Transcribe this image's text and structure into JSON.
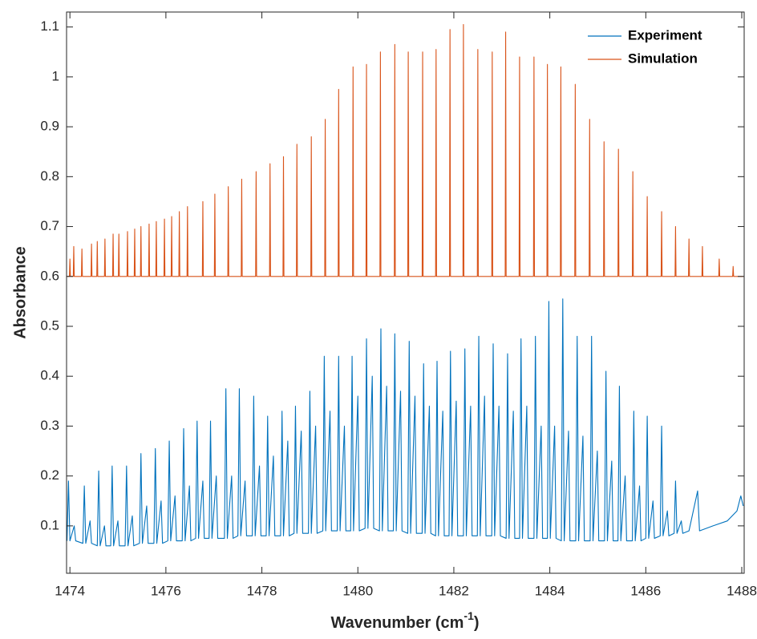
{
  "chart_data": {
    "type": "line",
    "xlabel": {
      "text": "Wavenumber (cm",
      "sup": "-1",
      "after": ")"
    },
    "ylabel": "Absorbance",
    "xlim": [
      1473.93,
      1488.05
    ],
    "xticks": [
      1474,
      1476,
      1478,
      1480,
      1482,
      1484,
      1486,
      1488
    ],
    "ylim": [
      0.005,
      1.13
    ],
    "yticks": [
      0.1,
      0.2,
      0.3,
      0.4,
      0.5,
      0.6,
      0.7,
      0.8,
      0.9,
      1,
      1.1
    ],
    "grid": false,
    "legend": "top-right",
    "series": [
      {
        "name": "Experiment",
        "color": "#0072bd",
        "x": [
          1473.94,
          1473.97,
          1474.0,
          1474.09,
          1474.12,
          1474.27,
          1474.3,
          1474.33,
          1474.42,
          1474.45,
          1474.57,
          1474.6,
          1474.63,
          1474.72,
          1474.75,
          1474.85,
          1474.88,
          1474.91,
          1475.0,
          1475.03,
          1475.15,
          1475.18,
          1475.21,
          1475.3,
          1475.33,
          1475.45,
          1475.48,
          1475.51,
          1475.6,
          1475.63,
          1475.75,
          1475.78,
          1475.81,
          1475.9,
          1475.93,
          1476.04,
          1476.07,
          1476.1,
          1476.19,
          1476.22,
          1476.34,
          1476.37,
          1476.4,
          1476.49,
          1476.52,
          1476.62,
          1476.65,
          1476.68,
          1476.77,
          1476.8,
          1476.9,
          1476.93,
          1476.96,
          1477.05,
          1477.08,
          1477.22,
          1477.25,
          1477.28,
          1477.37,
          1477.4,
          1477.5,
          1477.53,
          1477.56,
          1477.65,
          1477.68,
          1477.8,
          1477.83,
          1477.86,
          1477.95,
          1477.98,
          1478.09,
          1478.12,
          1478.15,
          1478.24,
          1478.27,
          1478.39,
          1478.42,
          1478.45,
          1478.54,
          1478.57,
          1478.67,
          1478.7,
          1478.73,
          1478.82,
          1478.85,
          1478.97,
          1479.0,
          1479.03,
          1479.12,
          1479.15,
          1479.27,
          1479.3,
          1479.33,
          1479.42,
          1479.45,
          1479.57,
          1479.6,
          1479.63,
          1479.72,
          1479.75,
          1479.85,
          1479.88,
          1479.91,
          1480.0,
          1480.03,
          1480.15,
          1480.18,
          1480.21,
          1480.3,
          1480.33,
          1480.45,
          1480.48,
          1480.51,
          1480.6,
          1480.63,
          1480.74,
          1480.77,
          1480.8,
          1480.89,
          1480.92,
          1481.04,
          1481.07,
          1481.1,
          1481.19,
          1481.22,
          1481.34,
          1481.37,
          1481.4,
          1481.49,
          1481.52,
          1481.62,
          1481.65,
          1481.68,
          1481.77,
          1481.8,
          1481.9,
          1481.93,
          1481.96,
          1482.05,
          1482.08,
          1482.2,
          1482.23,
          1482.26,
          1482.35,
          1482.38,
          1482.49,
          1482.52,
          1482.55,
          1482.64,
          1482.67,
          1482.79,
          1482.82,
          1482.85,
          1482.94,
          1482.97,
          1483.09,
          1483.12,
          1483.15,
          1483.24,
          1483.27,
          1483.37,
          1483.4,
          1483.43,
          1483.52,
          1483.55,
          1483.67,
          1483.7,
          1483.73,
          1483.82,
          1483.85,
          1483.95,
          1483.98,
          1484.01,
          1484.1,
          1484.13,
          1484.24,
          1484.27,
          1484.3,
          1484.39,
          1484.42,
          1484.54,
          1484.57,
          1484.6,
          1484.69,
          1484.72,
          1484.84,
          1484.87,
          1484.9,
          1484.99,
          1485.02,
          1485.14,
          1485.17,
          1485.2,
          1485.29,
          1485.32,
          1485.42,
          1485.45,
          1485.48,
          1485.57,
          1485.6,
          1485.72,
          1485.75,
          1485.78,
          1485.87,
          1485.9,
          1486.0,
          1486.03,
          1486.06,
          1486.15,
          1486.18,
          1486.3,
          1486.33,
          1486.36,
          1486.45,
          1486.48,
          1486.59,
          1486.62,
          1486.65,
          1486.74,
          1486.77,
          1486.9,
          1487.08,
          1487.12,
          1487.4,
          1487.7,
          1487.9,
          1487.98,
          1488.03
        ],
        "values": [
          0.07,
          0.19,
          0.07,
          0.1,
          0.07,
          0.065,
          0.18,
          0.065,
          0.11,
          0.065,
          0.06,
          0.21,
          0.06,
          0.1,
          0.06,
          0.06,
          0.22,
          0.06,
          0.11,
          0.06,
          0.06,
          0.22,
          0.06,
          0.12,
          0.06,
          0.065,
          0.245,
          0.065,
          0.14,
          0.065,
          0.065,
          0.255,
          0.065,
          0.15,
          0.065,
          0.07,
          0.27,
          0.07,
          0.16,
          0.07,
          0.07,
          0.295,
          0.07,
          0.18,
          0.07,
          0.075,
          0.31,
          0.075,
          0.19,
          0.075,
          0.075,
          0.31,
          0.075,
          0.2,
          0.075,
          0.075,
          0.375,
          0.075,
          0.2,
          0.075,
          0.08,
          0.375,
          0.08,
          0.19,
          0.08,
          0.08,
          0.36,
          0.08,
          0.22,
          0.08,
          0.08,
          0.32,
          0.08,
          0.24,
          0.08,
          0.08,
          0.33,
          0.08,
          0.27,
          0.08,
          0.085,
          0.34,
          0.085,
          0.29,
          0.085,
          0.085,
          0.37,
          0.085,
          0.3,
          0.085,
          0.09,
          0.44,
          0.09,
          0.33,
          0.09,
          0.09,
          0.44,
          0.09,
          0.3,
          0.09,
          0.09,
          0.44,
          0.09,
          0.36,
          0.09,
          0.095,
          0.475,
          0.095,
          0.4,
          0.095,
          0.09,
          0.495,
          0.09,
          0.38,
          0.09,
          0.09,
          0.485,
          0.09,
          0.37,
          0.09,
          0.085,
          0.47,
          0.085,
          0.36,
          0.085,
          0.085,
          0.425,
          0.085,
          0.34,
          0.085,
          0.08,
          0.43,
          0.08,
          0.33,
          0.08,
          0.08,
          0.45,
          0.08,
          0.35,
          0.08,
          0.08,
          0.455,
          0.08,
          0.34,
          0.08,
          0.08,
          0.48,
          0.08,
          0.36,
          0.08,
          0.08,
          0.465,
          0.08,
          0.34,
          0.08,
          0.075,
          0.445,
          0.075,
          0.33,
          0.075,
          0.075,
          0.475,
          0.075,
          0.34,
          0.075,
          0.075,
          0.48,
          0.075,
          0.3,
          0.075,
          0.075,
          0.55,
          0.075,
          0.3,
          0.075,
          0.07,
          0.555,
          0.07,
          0.29,
          0.07,
          0.07,
          0.48,
          0.07,
          0.28,
          0.07,
          0.07,
          0.48,
          0.07,
          0.25,
          0.07,
          0.07,
          0.41,
          0.07,
          0.23,
          0.07,
          0.07,
          0.38,
          0.07,
          0.2,
          0.07,
          0.07,
          0.33,
          0.07,
          0.18,
          0.07,
          0.075,
          0.32,
          0.075,
          0.15,
          0.075,
          0.08,
          0.3,
          0.08,
          0.13,
          0.08,
          0.085,
          0.19,
          0.085,
          0.11,
          0.085,
          0.09,
          0.17,
          0.09,
          0.1,
          0.11,
          0.13,
          0.16,
          0.14
        ]
      },
      {
        "name": "Simulation",
        "color": "#d95319",
        "x": [
          1473.94,
          1473.99,
          1474.0,
          1474.01,
          1474.07,
          1474.08,
          1474.09,
          1474.24,
          1474.25,
          1474.26,
          1474.44,
          1474.45,
          1474.46,
          1474.56,
          1474.57,
          1474.58,
          1474.72,
          1474.73,
          1474.74,
          1474.89,
          1474.9,
          1474.91,
          1475.01,
          1475.02,
          1475.03,
          1475.19,
          1475.2,
          1475.21,
          1475.34,
          1475.35,
          1475.36,
          1475.47,
          1475.48,
          1475.49,
          1475.64,
          1475.65,
          1475.66,
          1475.79,
          1475.8,
          1475.81,
          1475.96,
          1475.97,
          1475.98,
          1476.11,
          1476.12,
          1476.13,
          1476.27,
          1476.28,
          1476.29,
          1476.44,
          1476.45,
          1476.46,
          1476.76,
          1476.77,
          1476.78,
          1477.01,
          1477.02,
          1477.03,
          1477.29,
          1477.3,
          1477.31,
          1477.57,
          1477.58,
          1477.59,
          1477.87,
          1477.88,
          1477.89,
          1478.16,
          1478.17,
          1478.18,
          1478.44,
          1478.45,
          1478.46,
          1478.72,
          1478.73,
          1478.74,
          1479.02,
          1479.03,
          1479.04,
          1479.31,
          1479.32,
          1479.33,
          1479.59,
          1479.6,
          1479.61,
          1479.89,
          1479.9,
          1479.91,
          1480.17,
          1480.18,
          1480.19,
          1480.46,
          1480.47,
          1480.48,
          1480.76,
          1480.77,
          1480.78,
          1481.04,
          1481.05,
          1481.06,
          1481.34,
          1481.35,
          1481.36,
          1481.62,
          1481.63,
          1481.64,
          1481.91,
          1481.92,
          1481.93,
          1482.19,
          1482.2,
          1482.21,
          1482.49,
          1482.5,
          1482.51,
          1482.79,
          1482.8,
          1482.81,
          1483.07,
          1483.08,
          1483.09,
          1483.36,
          1483.37,
          1483.38,
          1483.66,
          1483.67,
          1483.68,
          1483.94,
          1483.95,
          1483.96,
          1484.22,
          1484.23,
          1484.24,
          1484.52,
          1484.53,
          1484.54,
          1484.82,
          1484.83,
          1484.84,
          1485.12,
          1485.13,
          1485.14,
          1485.42,
          1485.43,
          1485.44,
          1485.72,
          1485.73,
          1485.74,
          1486.02,
          1486.03,
          1486.04,
          1486.32,
          1486.33,
          1486.34,
          1486.61,
          1486.62,
          1486.63,
          1486.89,
          1486.9,
          1486.91,
          1487.17,
          1487.18,
          1487.19,
          1487.52,
          1487.53,
          1487.54,
          1487.81,
          1487.82,
          1487.83,
          1488.03
        ],
        "values": [
          0.6,
          0.6,
          0.635,
          0.6,
          0.6,
          0.66,
          0.6,
          0.6,
          0.655,
          0.6,
          0.6,
          0.665,
          0.6,
          0.6,
          0.67,
          0.6,
          0.6,
          0.675,
          0.6,
          0.6,
          0.685,
          0.6,
          0.6,
          0.685,
          0.6,
          0.6,
          0.69,
          0.6,
          0.6,
          0.695,
          0.6,
          0.6,
          0.7,
          0.6,
          0.6,
          0.705,
          0.6,
          0.6,
          0.71,
          0.6,
          0.6,
          0.715,
          0.6,
          0.6,
          0.72,
          0.6,
          0.6,
          0.73,
          0.6,
          0.6,
          0.74,
          0.6,
          0.6,
          0.75,
          0.6,
          0.6,
          0.765,
          0.6,
          0.6,
          0.78,
          0.6,
          0.6,
          0.795,
          0.6,
          0.6,
          0.81,
          0.6,
          0.6,
          0.826,
          0.6,
          0.6,
          0.84,
          0.6,
          0.6,
          0.865,
          0.6,
          0.6,
          0.88,
          0.6,
          0.6,
          0.915,
          0.6,
          0.6,
          0.975,
          0.6,
          0.6,
          1.02,
          0.6,
          0.6,
          1.025,
          0.6,
          0.6,
          1.05,
          0.6,
          0.6,
          1.065,
          0.6,
          0.6,
          1.05,
          0.6,
          0.6,
          1.05,
          0.6,
          0.6,
          1.055,
          0.6,
          0.6,
          1.095,
          0.6,
          0.6,
          1.105,
          0.6,
          0.6,
          1.055,
          0.6,
          0.6,
          1.05,
          0.6,
          0.6,
          1.09,
          0.6,
          0.6,
          1.04,
          0.6,
          0.6,
          1.04,
          0.6,
          0.6,
          1.025,
          0.6,
          0.6,
          1.02,
          0.6,
          0.6,
          0.985,
          0.6,
          0.6,
          0.915,
          0.6,
          0.6,
          0.87,
          0.6,
          0.6,
          0.855,
          0.6,
          0.6,
          0.81,
          0.6,
          0.6,
          0.76,
          0.6,
          0.6,
          0.73,
          0.6,
          0.6,
          0.7,
          0.6,
          0.6,
          0.675,
          0.6,
          0.6,
          0.66,
          0.6,
          0.6,
          0.635,
          0.6,
          0.6,
          0.62,
          0.6,
          0.6
        ]
      }
    ]
  }
}
